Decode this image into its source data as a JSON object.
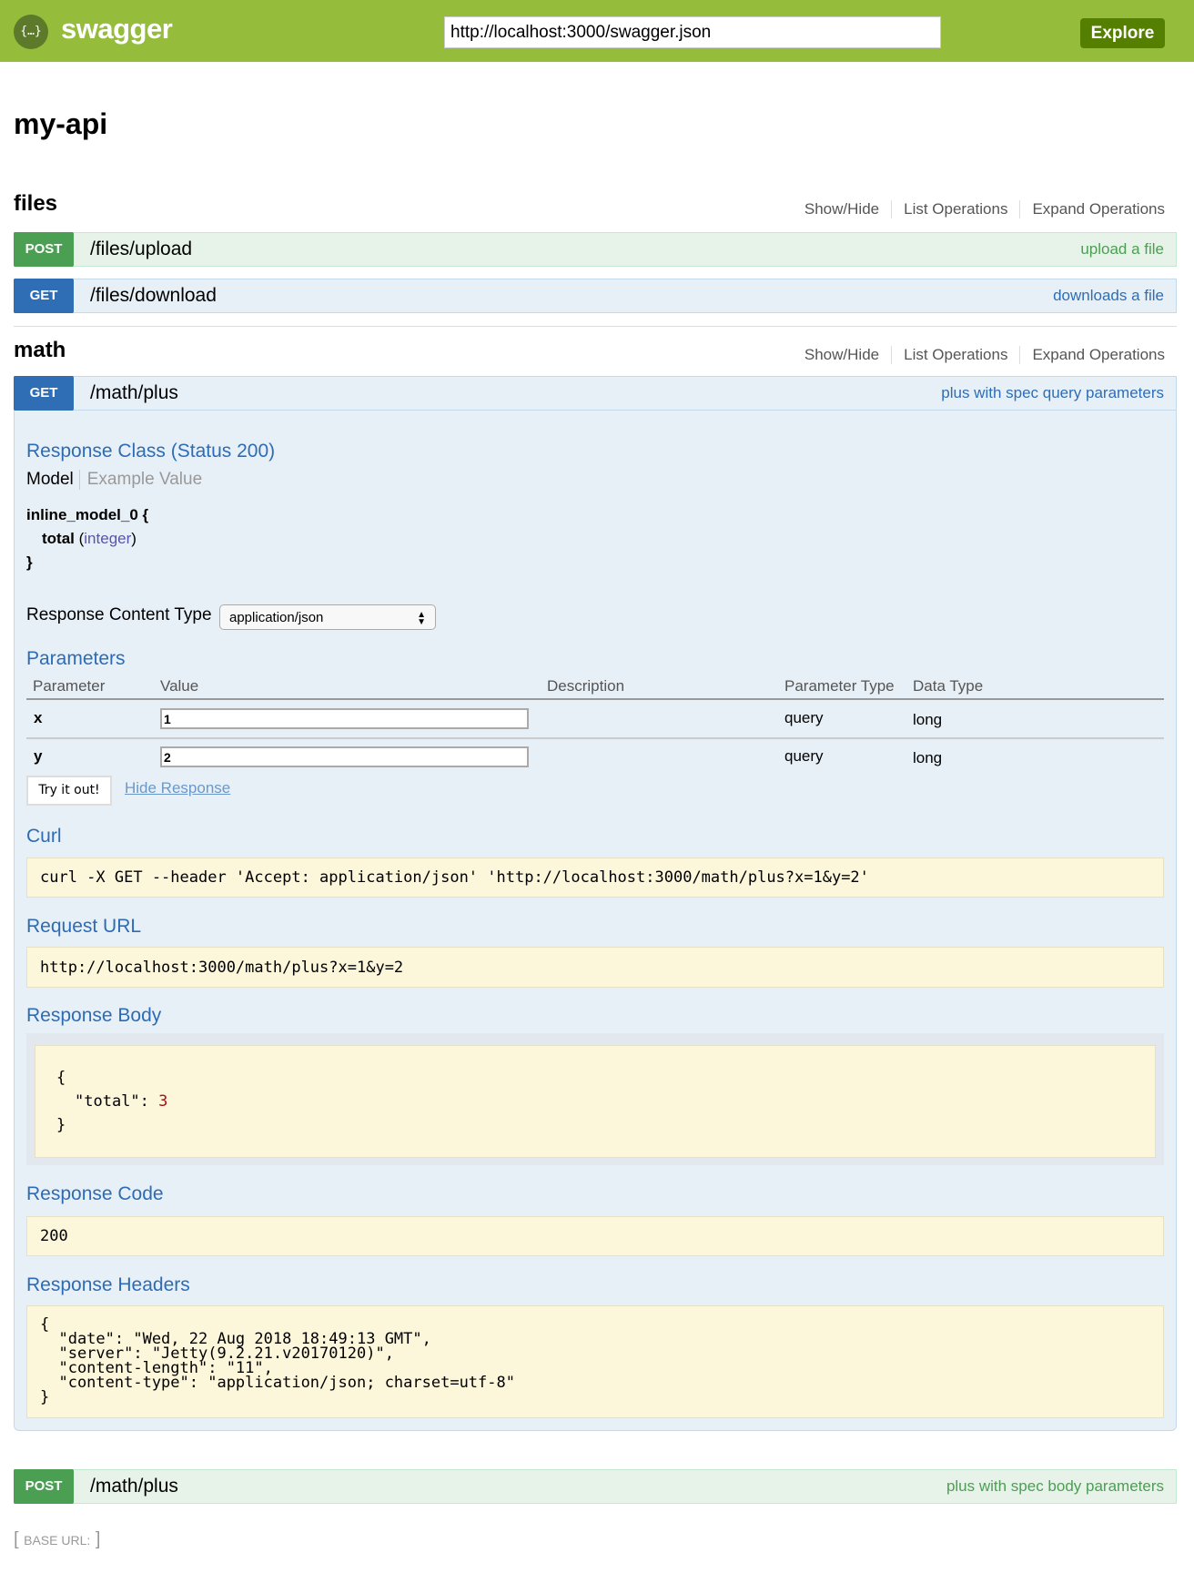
{
  "header": {
    "brand": "swagger",
    "logo_glyph": "{…}",
    "url": "http://localhost:3000/swagger.json",
    "explore_label": "Explore",
    "color": "#95bc3b"
  },
  "api_title": "my-api",
  "links": {
    "show_hide": "Show/Hide",
    "list": "List Operations",
    "expand": "Expand Operations"
  },
  "files": {
    "name": "files",
    "ops": [
      {
        "method": "POST",
        "path": "/files/upload",
        "summary": "upload a file"
      },
      {
        "method": "GET",
        "path": "/files/download",
        "summary": "downloads a file"
      }
    ]
  },
  "math": {
    "name": "math",
    "op": {
      "method": "GET",
      "path": "/math/plus",
      "summary": "plus with spec query parameters"
    },
    "response_class": "Response Class (Status 200)",
    "model_tab": "Model",
    "example_tab": "Example Value",
    "model": {
      "name": "inline_model_0 {",
      "prop": "total",
      "type": "integer",
      "close": "}"
    },
    "content_type_label": "Response Content Type",
    "content_type": "application/json",
    "parameters_title": "Parameters",
    "columns": [
      "Parameter",
      "Value",
      "Description",
      "Parameter Type",
      "Data Type"
    ],
    "params": [
      {
        "name": "x",
        "value": "1",
        "ptype": "query",
        "dtype": "long"
      },
      {
        "name": "y",
        "value": "2",
        "ptype": "query",
        "dtype": "long"
      }
    ],
    "try_label": "Try it out!",
    "hide_label": "Hide Response",
    "curl_title": "Curl",
    "curl": "curl -X GET --header 'Accept: application/json' 'http://localhost:3000/math/plus?x=1&y=2'",
    "request_url_title": "Request URL",
    "request_url": "http://localhost:3000/math/plus?x=1&y=2",
    "response_body_title": "Response Body",
    "body_open": "{",
    "body_key": "\"total\": ",
    "body_val": "3",
    "body_close": "}",
    "response_code_title": "Response Code",
    "response_code": "200",
    "response_headers_title": "Response Headers",
    "response_headers": "{\n  \"date\": \"Wed, 22 Aug 2018 18:49:13 GMT\",\n  \"server\": \"Jetty(9.2.21.v20170120)\",\n  \"content-length\": \"11\",\n  \"content-type\": \"application/json; charset=utf-8\"\n}",
    "op2": {
      "method": "POST",
      "path": "/math/plus",
      "summary": "plus with spec body parameters"
    }
  },
  "footer": {
    "base_url": "BASE URL:"
  }
}
